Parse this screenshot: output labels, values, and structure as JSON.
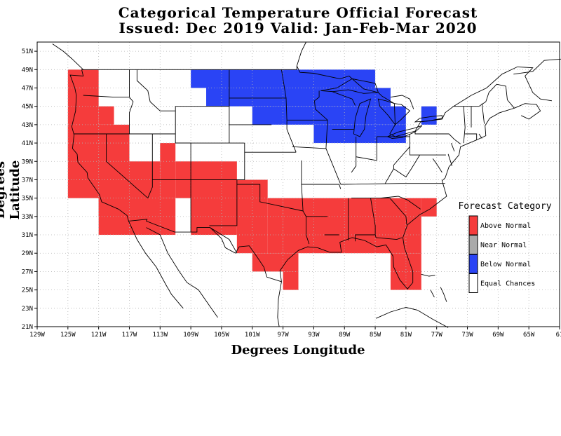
{
  "title": {
    "line1": "Categorical Temperature Official Forecast",
    "line2": "Issued: Dec 2019 Valid: Jan-Feb-Mar 2020"
  },
  "axes": {
    "x_title": "Degrees Longitude",
    "y_title": "Degrees Latitude",
    "x_ticks": [
      "129W",
      "125W",
      "121W",
      "117W",
      "113W",
      "109W",
      "105W",
      "101W",
      "97W",
      "93W",
      "89W",
      "85W",
      "81W",
      "77W",
      "73W",
      "69W",
      "65W",
      "61"
    ],
    "y_ticks": [
      "51N",
      "49N",
      "47N",
      "45N",
      "43N",
      "41N",
      "39N",
      "37N",
      "35N",
      "33N",
      "31N",
      "29N",
      "27N",
      "25N",
      "23N",
      "21N"
    ],
    "x_range_deg": [
      -129,
      -61
    ],
    "y_range_deg": [
      21,
      52
    ],
    "grid": "dotted"
  },
  "legend": {
    "title": "Forecast Category",
    "placement": "right",
    "items": [
      {
        "label": "Above Normal",
        "color": "#f53c3c"
      },
      {
        "label": "Near Normal",
        "color": "#aaaaaa"
      },
      {
        "label": "Below Normal",
        "color": "#2a44f5"
      },
      {
        "label": "Equal Chances",
        "color": "#ffffff"
      }
    ]
  },
  "colors": {
    "above": "#f53c3c",
    "below": "#2a44f5",
    "lines": "#000000",
    "grid": "#b4b4b4"
  },
  "chart_data": {
    "type": "heatmap",
    "cell_size_deg": 2,
    "categories": [
      "Above Normal",
      "Below Normal"
    ],
    "above_normal_blocks": [
      {
        "lon": [
          -125,
          -121
        ],
        "lat": [
          39,
          49
        ]
      },
      {
        "lon": [
          -121,
          -119
        ],
        "lat": [
          43,
          45
        ]
      },
      {
        "lon": [
          -125,
          -117
        ],
        "lat": [
          35,
          43
        ]
      },
      {
        "lon": [
          -121,
          -113
        ],
        "lat": [
          33,
          39
        ]
      },
      {
        "lon": [
          -121,
          -111
        ],
        "lat": [
          31,
          35
        ]
      },
      {
        "lon": [
          -113,
          -111
        ],
        "lat": [
          35,
          41
        ]
      },
      {
        "lon": [
          -111,
          -109
        ],
        "lat": [
          35,
          39
        ]
      },
      {
        "lon": [
          -109,
          -103
        ],
        "lat": [
          31,
          39
        ]
      },
      {
        "lon": [
          -103,
          -99
        ],
        "lat": [
          29,
          37
        ]
      },
      {
        "lon": [
          -99,
          -97
        ],
        "lat": [
          29,
          35
        ]
      },
      {
        "lon": [
          -97,
          -79
        ],
        "lat": [
          29,
          35
        ]
      },
      {
        "lon": [
          -79,
          -77
        ],
        "lat": [
          33,
          35
        ]
      },
      {
        "lon": [
          -101,
          -95
        ],
        "lat": [
          27,
          29
        ]
      },
      {
        "lon": [
          -97,
          -95
        ],
        "lat": [
          25,
          27
        ]
      },
      {
        "lon": [
          -83,
          -79
        ],
        "lat": [
          25,
          29
        ]
      }
    ],
    "below_normal_blocks": [
      {
        "lon": [
          -109,
          -85
        ],
        "lat": [
          47,
          49
        ]
      },
      {
        "lon": [
          -107,
          -83
        ],
        "lat": [
          45,
          47
        ]
      },
      {
        "lon": [
          -101,
          -81
        ],
        "lat": [
          43,
          45
        ]
      },
      {
        "lon": [
          -93,
          -81
        ],
        "lat": [
          41,
          43
        ]
      },
      {
        "lon": [
          -79,
          -77
        ],
        "lat": [
          43,
          45
        ]
      }
    ]
  }
}
